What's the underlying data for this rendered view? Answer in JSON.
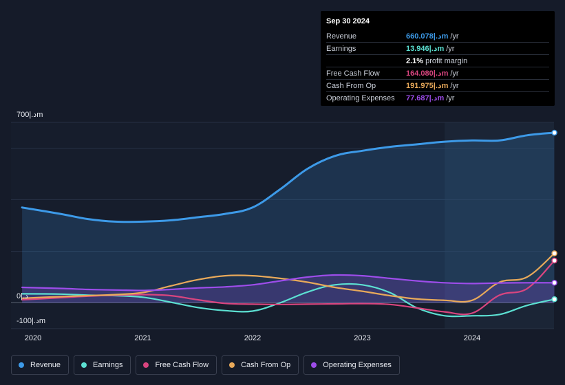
{
  "chart_data": {
    "type": "area",
    "y_axis": {
      "top_label": "700|.دm",
      "zero_label": "0|.د",
      "bottom_label": "-100|.دm",
      "ylim": [
        -100,
        700
      ]
    },
    "x": [
      2019.9,
      2020.25,
      2020.5,
      2020.75,
      2021.0,
      2021.25,
      2021.5,
      2021.75,
      2022.0,
      2022.25,
      2022.5,
      2022.75,
      2023.0,
      2023.25,
      2023.5,
      2023.75,
      2024.0,
      2024.25,
      2024.5,
      2024.75
    ],
    "x_ticks": [
      "2020",
      "2021",
      "2022",
      "2023",
      "2024"
    ],
    "x_tick_values": [
      2020,
      2021,
      2022,
      2023,
      2024
    ],
    "forecast_start": 2023.75,
    "x_max": 2024.75,
    "series": [
      {
        "name": "Revenue",
        "color": "#3d9ae8",
        "fill": true,
        "values": [
          370,
          345,
          325,
          315,
          315,
          320,
          332,
          345,
          370,
          440,
          520,
          570,
          590,
          605,
          615,
          625,
          630,
          630,
          650,
          660
        ]
      },
      {
        "name": "Earnings",
        "color": "#5ce0d2",
        "fill": false,
        "values": [
          35,
          34,
          30,
          28,
          22,
          3,
          -18,
          -30,
          -32,
          0,
          42,
          70,
          70,
          40,
          -20,
          -50,
          -50,
          -45,
          -10,
          14
        ]
      },
      {
        "name": "Free Cash Flow",
        "color": "#d9457f",
        "fill": false,
        "values": [
          12,
          20,
          26,
          30,
          32,
          28,
          12,
          -2,
          -5,
          -6,
          -5,
          -4,
          -3,
          -6,
          -20,
          -35,
          -40,
          30,
          55,
          164
        ]
      },
      {
        "name": "Cash From Op",
        "color": "#e8a95a",
        "fill": false,
        "values": [
          18,
          24,
          28,
          32,
          40,
          65,
          90,
          105,
          105,
          95,
          80,
          60,
          45,
          28,
          15,
          10,
          10,
          80,
          100,
          192
        ]
      },
      {
        "name": "Operating Expenses",
        "color": "#9d4dea",
        "fill": true,
        "values": [
          60,
          56,
          52,
          50,
          48,
          52,
          58,
          62,
          70,
          85,
          100,
          108,
          105,
          95,
          85,
          78,
          75,
          77,
          78,
          78
        ]
      }
    ]
  },
  "tooltip": {
    "date": "Sep 30 2024",
    "rows": [
      {
        "label": "Revenue",
        "value": "660.078|.دm",
        "unit": "/yr",
        "color": "#3d9ae8"
      },
      {
        "label": "Earnings",
        "value": "13.946|.دm",
        "unit": "/yr",
        "color": "#5ce0d2"
      },
      {
        "label": "",
        "value": "2.1%",
        "unit": "profit margin",
        "color": "#ffffff"
      },
      {
        "label": "Free Cash Flow",
        "value": "164.080|.دm",
        "unit": "/yr",
        "color": "#d9457f"
      },
      {
        "label": "Cash From Op",
        "value": "191.975|.دm",
        "unit": "/yr",
        "color": "#e8a95a"
      },
      {
        "label": "Operating Expenses",
        "value": "77.687|.دm",
        "unit": "/yr",
        "color": "#9d4dea"
      }
    ]
  },
  "legend": [
    {
      "label": "Revenue",
      "color": "#3d9ae8"
    },
    {
      "label": "Earnings",
      "color": "#5ce0d2"
    },
    {
      "label": "Free Cash Flow",
      "color": "#d9457f"
    },
    {
      "label": "Cash From Op",
      "color": "#e8a95a"
    },
    {
      "label": "Operating Expenses",
      "color": "#9d4dea"
    }
  ]
}
